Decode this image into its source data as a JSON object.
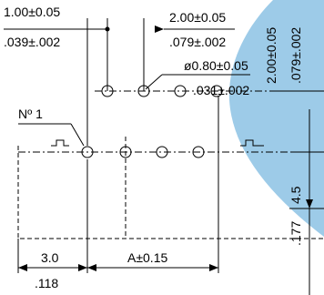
{
  "diagram": {
    "pitch_mm": "1.00±0.05",
    "pitch_in": ".039±.002",
    "row_spacing_mm": "2.00±0.05",
    "row_spacing_in": ".079±.002",
    "hole_dia_mm": "ø0.80±0.05",
    "hole_dia_in": ".031±.002",
    "pin_label": "Nº 1",
    "right_height_mm": "2.00±0.05",
    "right_height_in": ".079±.002",
    "depth_mm": "4.5",
    "depth_in": ".177",
    "offset_mm": "3.0",
    "offset_in": ".118",
    "a_dim": "A±0.15",
    "bg_shape_color": "#9dcbe8"
  }
}
